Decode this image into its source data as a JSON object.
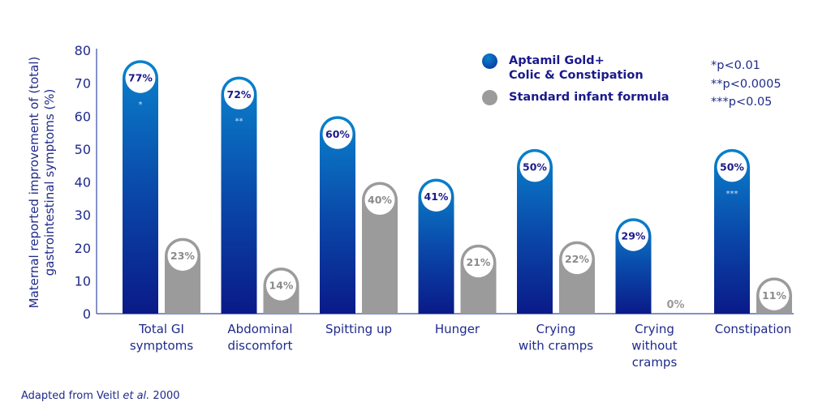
{
  "chart_data": {
    "type": "bar",
    "ylabel": "Maternal reported improvement of (total) gastrointestinal symptoms (%)",
    "ylim": [
      0,
      80
    ],
    "yticks": [
      0,
      10,
      20,
      30,
      40,
      50,
      60,
      70,
      80
    ],
    "grid": false,
    "legend_position": "top-right",
    "categories": [
      [
        "Total GI",
        "symptoms"
      ],
      [
        "Abdominal",
        "discomfort"
      ],
      [
        "Spitting up"
      ],
      [
        "Hunger"
      ],
      [
        "Crying",
        "with cramps"
      ],
      [
        "Crying",
        "without",
        "cramps"
      ],
      [
        "Constipation"
      ]
    ],
    "series": [
      {
        "name": "Aptamil Gold+ Colic & Constipation",
        "values": [
          77,
          72,
          60,
          41,
          50,
          29,
          50
        ],
        "labels": [
          "77%",
          "72%",
          "60%",
          "41%",
          "50%",
          "29%",
          "50%"
        ],
        "significance": [
          "*",
          "**",
          "",
          "",
          "",
          "",
          "***"
        ],
        "color": "#0a2a9a"
      },
      {
        "name": "Standard infant formula",
        "values": [
          23,
          14,
          40,
          21,
          22,
          0,
          11
        ],
        "labels": [
          "23%",
          "14%",
          "40%",
          "21%",
          "22%",
          "0%",
          "11%"
        ],
        "color": "#9b9b9b"
      }
    ],
    "legend": {
      "series1_line1": "Aptamil Gold+",
      "series1_line2": "Colic & Constipation",
      "series2": "Standard infant formula"
    },
    "footnotes": [
      "*p<0.01",
      "**p<0.0005",
      "***p<0.05"
    ],
    "source_prefix": "Adapted from Veitl ",
    "source_italic": "et al.",
    "source_suffix": " 2000"
  }
}
